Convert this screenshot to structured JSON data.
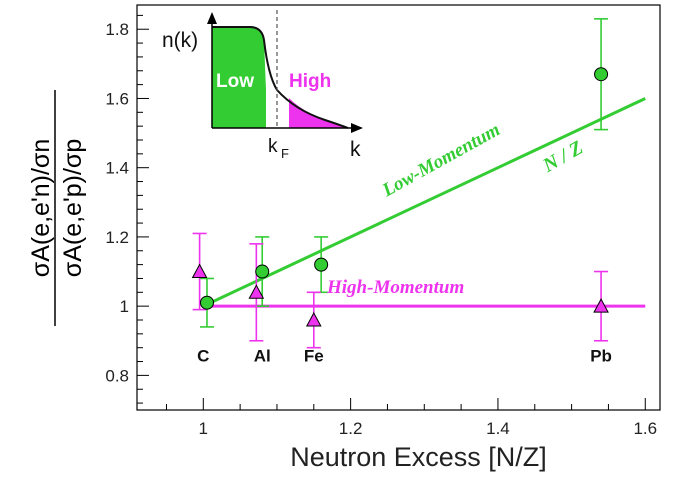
{
  "chart_data": {
    "type": "scatter",
    "xlabel": "Neutron Excess [N/Z]",
    "ylabel": {
      "numerator": "σA(e,e'n)/σn",
      "denominator": "σA(e,e'p)/σp"
    },
    "xlim": [
      0.91,
      1.62
    ],
    "ylim": [
      0.7,
      1.87
    ],
    "xticks": [
      1,
      1.2,
      1.4,
      1.6
    ],
    "xtick_labels": [
      "1",
      "1.2",
      "1.4",
      "1.6"
    ],
    "yticks": [
      0.8,
      1,
      1.2,
      1.4,
      1.6,
      1.8
    ],
    "ytick_labels": [
      "0.8",
      "1",
      "1.2",
      "1.4",
      "1.6",
      "1.8"
    ],
    "grid": false,
    "nuclei": [
      {
        "label": "C",
        "x": 1.0
      },
      {
        "label": "Al",
        "x": 1.08
      },
      {
        "label": "Fe",
        "x": 1.15
      },
      {
        "label": "Pb",
        "x": 1.54
      }
    ],
    "series": [
      {
        "name": "Low-Momentum",
        "color": "#33cc33",
        "marker": "circle",
        "points": [
          {
            "x": 1.005,
            "y": 1.01,
            "err": 0.07
          },
          {
            "x": 1.08,
            "y": 1.1,
            "err": 0.1
          },
          {
            "x": 1.16,
            "y": 1.12,
            "err": 0.08
          },
          {
            "x": 1.54,
            "y": 1.67,
            "err": 0.16
          }
        ]
      },
      {
        "name": "High-Momentum",
        "color": "#ee33ee",
        "marker": "triangle",
        "points": [
          {
            "x": 0.995,
            "y": 1.1,
            "err": 0.11
          },
          {
            "x": 1.072,
            "y": 1.04,
            "err": 0.14
          },
          {
            "x": 1.15,
            "y": 0.96,
            "err": 0.08
          },
          {
            "x": 1.54,
            "y": 1.0,
            "err": 0.1
          }
        ]
      }
    ],
    "lines": [
      {
        "name": "N / Z",
        "color": "#33cc33",
        "x": [
          1.0,
          1.6
        ],
        "y": [
          1.0,
          1.6
        ]
      },
      {
        "name": "High-Momentum flat",
        "color": "#ee33ee",
        "x": [
          1.0,
          1.6
        ],
        "y": [
          1.0,
          1.0
        ]
      }
    ],
    "annotations": {
      "nz_label": "N / Z",
      "low_label": "Low-Momentum",
      "high_label": "High-Momentum"
    },
    "inset": {
      "ylabel": "n(k)",
      "xlabel": "k",
      "kf_label": "k",
      "kf_sub": "F",
      "low_label": "Low",
      "high_label": "High",
      "low_color": "#33cc33",
      "high_color": "#ee33ee"
    }
  }
}
